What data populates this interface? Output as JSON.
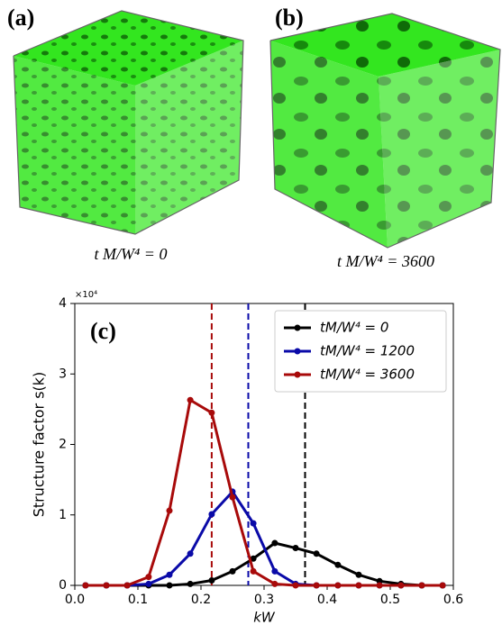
{
  "panels": [
    {
      "label": "(a)",
      "caption": "t M/W⁴ = 0"
    },
    {
      "label": "(b)",
      "caption": "t M/W⁴ = 3600"
    }
  ],
  "chart_data": {
    "type": "line",
    "panel_label": "(c)",
    "x_label": "kW",
    "y_label": "Structure factor s(k)",
    "y_offset_label": "×10⁴",
    "x": [
      0.017,
      0.05,
      0.083,
      0.117,
      0.15,
      0.183,
      0.217,
      0.25,
      0.283,
      0.317,
      0.35,
      0.383,
      0.417,
      0.45,
      0.483,
      0.517,
      0.55,
      0.583
    ],
    "series": [
      {
        "name": "tM/W⁴ = 0",
        "color": "#000000",
        "values": [
          0,
          0,
          0,
          0,
          0,
          0.02,
          0.07,
          0.2,
          0.38,
          0.6,
          0.53,
          0.45,
          0.29,
          0.15,
          0.06,
          0.02,
          0,
          0
        ]
      },
      {
        "name": "tM/W⁴ = 1200",
        "color": "#0a0aa8",
        "values": [
          0,
          0,
          0,
          0.02,
          0.15,
          0.45,
          1.01,
          1.33,
          0.88,
          0.2,
          0.02,
          0,
          0,
          0,
          0,
          0,
          0,
          0
        ]
      },
      {
        "name": "tM/W⁴ = 3600",
        "color": "#a80a0a",
        "values": [
          0,
          0,
          0,
          0.12,
          1.06,
          2.63,
          2.45,
          1.25,
          0.2,
          0.02,
          0,
          0,
          0,
          0,
          0,
          0,
          0,
          0
        ]
      }
    ],
    "vlines": [
      {
        "x": 0.365,
        "color": "#000000"
      },
      {
        "x": 0.275,
        "color": "#0a0aa8"
      },
      {
        "x": 0.217,
        "color": "#a80a0a"
      }
    ],
    "xlim": [
      0,
      0.6
    ],
    "xticks": [
      {
        "value": 0,
        "label": "0.0"
      },
      {
        "value": 0.1,
        "label": "0.1"
      },
      {
        "value": 0.2,
        "label": "0.2"
      },
      {
        "value": 0.3,
        "label": "0.3"
      },
      {
        "value": 0.4,
        "label": "0.4"
      },
      {
        "value": 0.5,
        "label": "0.5"
      },
      {
        "value": 0.6,
        "label": "0.6"
      }
    ],
    "ylim": [
      0,
      4
    ],
    "yticks": [
      0,
      1,
      2,
      3,
      4
    ],
    "legend": "upper right"
  }
}
